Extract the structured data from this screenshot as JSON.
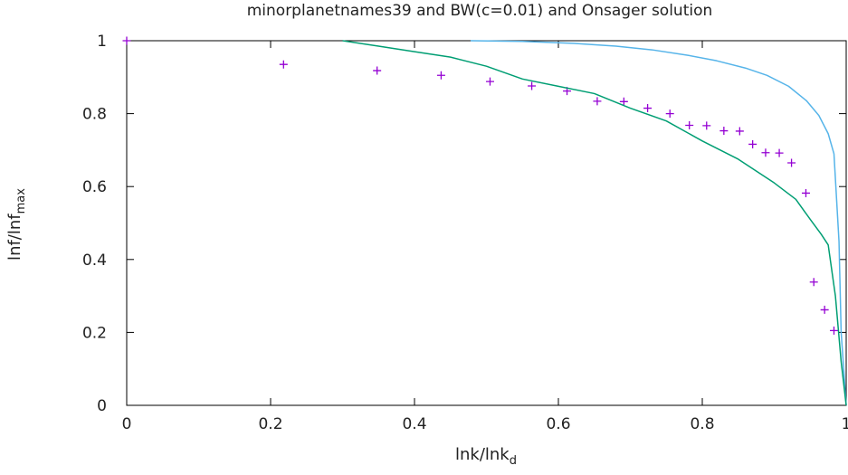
{
  "chart_data": {
    "type": "line",
    "title": "minorplanetnames39 and BW(c=0.01) and Onsager solution",
    "xlabel": {
      "main": "lnk/lnk",
      "sub": "d"
    },
    "ylabel": {
      "main": "lnf/lnf",
      "sub": "max"
    },
    "xlim": [
      0,
      1
    ],
    "ylim": [
      0,
      1
    ],
    "xticks": [
      0,
      0.2,
      0.4,
      0.6,
      0.8,
      1
    ],
    "xtick_labels": [
      "0",
      "0.2",
      "0.4",
      "0.6",
      "0.8",
      "1"
    ],
    "yticks": [
      0,
      0.2,
      0.4,
      0.6,
      0.8,
      1
    ],
    "ytick_labels": [
      "0",
      "0.2",
      "0.4",
      "0.6",
      "0.8",
      "1"
    ],
    "grid": false,
    "series": [
      {
        "style": "points",
        "color": "#9400d3",
        "x": [
          0,
          0.218,
          0.348,
          0.437,
          0.505,
          0.563,
          0.612,
          0.654,
          0.691,
          0.724,
          0.755,
          0.782,
          0.806,
          0.83,
          0.852,
          0.87,
          0.888,
          0.907,
          0.924,
          0.944,
          0.955,
          0.97,
          0.983
        ],
        "y": [
          1.0,
          0.935,
          0.918,
          0.905,
          0.888,
          0.876,
          0.862,
          0.834,
          0.833,
          0.815,
          0.8,
          0.768,
          0.767,
          0.753,
          0.752,
          0.716,
          0.693,
          0.692,
          0.665,
          0.582,
          0.338,
          0.262,
          0.205
        ]
      },
      {
        "style": "line",
        "color": "#56b4e9",
        "x": [
          0.478,
          0.55,
          0.62,
          0.68,
          0.73,
          0.78,
          0.82,
          0.86,
          0.89,
          0.92,
          0.945,
          0.962,
          0.975,
          0.983,
          0.99,
          0.993,
          1.0
        ],
        "y": [
          1.0,
          0.998,
          0.993,
          0.985,
          0.975,
          0.96,
          0.945,
          0.925,
          0.905,
          0.875,
          0.835,
          0.795,
          0.745,
          0.69,
          0.45,
          0.2,
          0.0
        ]
      },
      {
        "style": "line",
        "color": "#009e73",
        "x": [
          0.3,
          0.35,
          0.4,
          0.45,
          0.5,
          0.55,
          0.6,
          0.65,
          0.7,
          0.75,
          0.8,
          0.85,
          0.9,
          0.93,
          0.95,
          0.965,
          0.975,
          0.985,
          0.993,
          1.0
        ],
        "y": [
          1.0,
          0.985,
          0.97,
          0.955,
          0.93,
          0.895,
          0.875,
          0.855,
          0.815,
          0.78,
          0.725,
          0.675,
          0.61,
          0.565,
          0.51,
          0.47,
          0.44,
          0.3,
          0.12,
          0.0
        ]
      }
    ]
  }
}
